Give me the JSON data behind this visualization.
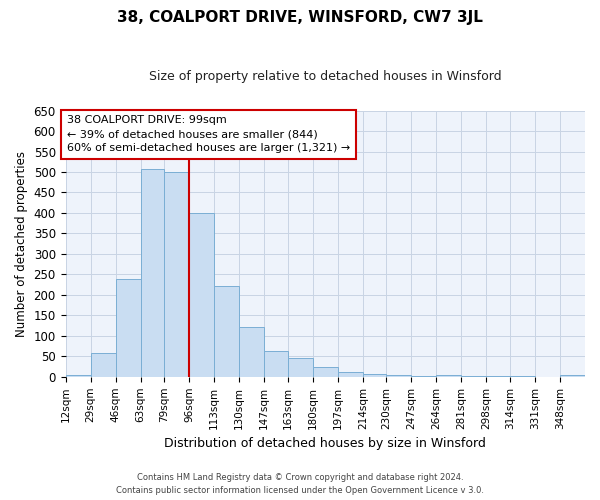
{
  "title": "38, COALPORT DRIVE, WINSFORD, CW7 3JL",
  "subtitle": "Size of property relative to detached houses in Winsford",
  "xlabel": "Distribution of detached houses by size in Winsford",
  "ylabel": "Number of detached properties",
  "bar_labels": [
    "12sqm",
    "29sqm",
    "46sqm",
    "63sqm",
    "79sqm",
    "96sqm",
    "113sqm",
    "130sqm",
    "147sqm",
    "163sqm",
    "180sqm",
    "197sqm",
    "214sqm",
    "230sqm",
    "247sqm",
    "264sqm",
    "281sqm",
    "298sqm",
    "314sqm",
    "331sqm",
    "348sqm"
  ],
  "bar_values": [
    5,
    57,
    240,
    507,
    500,
    400,
    222,
    121,
    62,
    46,
    25,
    11,
    8,
    5,
    3,
    5,
    2,
    1,
    3,
    0,
    5
  ],
  "bin_edges": [
    12,
    29,
    46,
    63,
    79,
    96,
    113,
    130,
    147,
    163,
    180,
    197,
    214,
    230,
    247,
    264,
    281,
    298,
    314,
    331,
    348,
    365
  ],
  "bar_color": "#c9ddf2",
  "bar_edge_color": "#7aaed4",
  "bar_edge_width": 0.7,
  "vline_x": 96,
  "vline_color": "#cc0000",
  "annotation_text": "38 COALPORT DRIVE: 99sqm\n← 39% of detached houses are smaller (844)\n60% of semi-detached houses are larger (1,321) →",
  "annotation_box_edge_color": "#cc0000",
  "ylim": [
    0,
    650
  ],
  "yticks": [
    0,
    50,
    100,
    150,
    200,
    250,
    300,
    350,
    400,
    450,
    500,
    550,
    600,
    650
  ],
  "grid_color": "#c8d4e4",
  "bg_color": "#eef3fb",
  "footer_line1": "Contains HM Land Registry data © Crown copyright and database right 2024.",
  "footer_line2": "Contains public sector information licensed under the Open Government Licence v 3.0."
}
